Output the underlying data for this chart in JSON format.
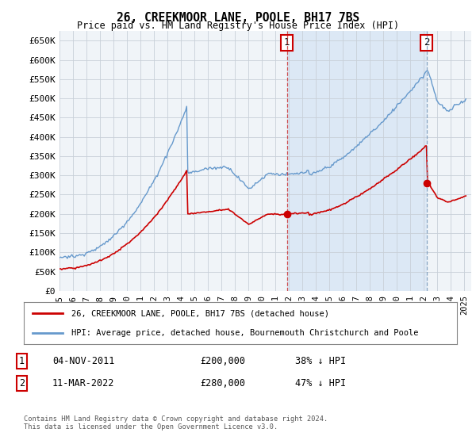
{
  "title": "26, CREEKMOOR LANE, POOLE, BH17 7BS",
  "subtitle": "Price paid vs. HM Land Registry's House Price Index (HPI)",
  "ylim": [
    0,
    675000
  ],
  "yticks": [
    0,
    50000,
    100000,
    150000,
    200000,
    250000,
    300000,
    350000,
    400000,
    450000,
    500000,
    550000,
    600000,
    650000
  ],
  "ytick_labels": [
    "£0",
    "£50K",
    "£100K",
    "£150K",
    "£200K",
    "£250K",
    "£300K",
    "£350K",
    "£400K",
    "£450K",
    "£500K",
    "£550K",
    "£600K",
    "£650K"
  ],
  "plot_bg_color": "#f0f4f8",
  "shade_color": "#dce8f5",
  "grid_color": "#c8d0d8",
  "hpi_color": "#6699cc",
  "price_color": "#cc0000",
  "marker1_date": 2011.84,
  "marker1_price": 200000,
  "marker1_label": "1",
  "marker2_date": 2022.19,
  "marker2_price": 280000,
  "marker2_label": "2",
  "legend_line1": "26, CREEKMOOR LANE, POOLE, BH17 7BS (detached house)",
  "legend_line2": "HPI: Average price, detached house, Bournemouth Christchurch and Poole",
  "table_row1": [
    "1",
    "04-NOV-2011",
    "£200,000",
    "38% ↓ HPI"
  ],
  "table_row2": [
    "2",
    "11-MAR-2022",
    "£280,000",
    "47% ↓ HPI"
  ],
  "footer": "Contains HM Land Registry data © Crown copyright and database right 2024.\nThis data is licensed under the Open Government Licence v3.0.",
  "xlim_start": 1995.0,
  "xlim_end": 2025.5
}
